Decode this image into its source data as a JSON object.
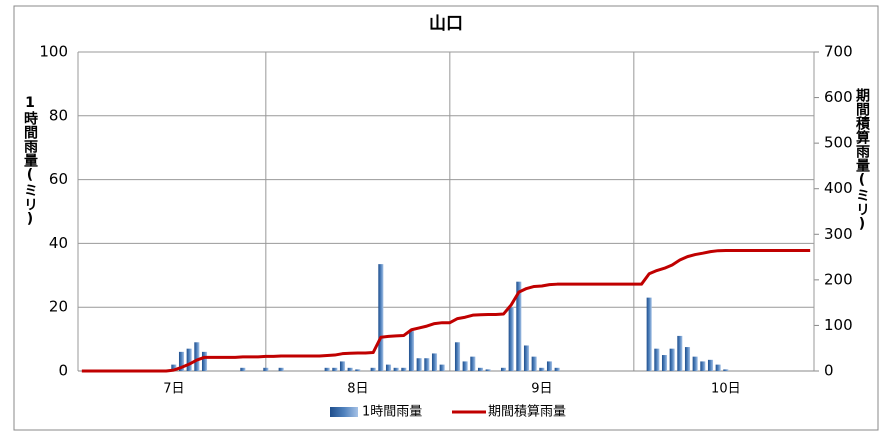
{
  "chart_data": {
    "type": "bar-line",
    "title": "山口",
    "y_label": "1時間雨量(ミリ)",
    "y2_label": "期間積算雨量(ミリ)",
    "categories": [
      null,
      null,
      null,
      null,
      null,
      null,
      null,
      null,
      null,
      null,
      null,
      null,
      "7日",
      null,
      null,
      null,
      null,
      null,
      null,
      null,
      null,
      null,
      null,
      null,
      null,
      null,
      null,
      null,
      null,
      null,
      null,
      null,
      null,
      null,
      null,
      null,
      "8日",
      null,
      null,
      null,
      null,
      null,
      null,
      null,
      null,
      null,
      null,
      null,
      null,
      null,
      null,
      null,
      null,
      null,
      null,
      null,
      null,
      null,
      null,
      null,
      "9日",
      null,
      null,
      null,
      null,
      null,
      null,
      null,
      null,
      null,
      null,
      null,
      null,
      null,
      null,
      null,
      null,
      null,
      null,
      null,
      null,
      null,
      null,
      null,
      "10日",
      null,
      null,
      null,
      null,
      null,
      null,
      null,
      null,
      null,
      null,
      null
    ],
    "series": [
      {
        "name": "1時間雨量",
        "color": "#4f81bd",
        "type": "bar",
        "values": [
          0,
          0,
          0,
          0,
          0,
          0,
          0,
          0,
          0,
          0,
          0,
          0,
          2,
          6,
          7,
          9,
          6,
          0,
          0,
          0,
          0,
          1,
          0,
          0,
          1,
          0,
          1,
          0,
          0,
          0,
          0,
          0,
          1,
          1,
          3,
          1,
          0.5,
          0,
          1,
          33.5,
          2,
          1,
          1,
          12.5,
          4,
          4,
          5.5,
          2,
          0,
          9,
          3,
          4.5,
          1,
          0.5,
          0,
          1,
          20,
          28,
          8,
          4.5,
          1,
          3,
          1,
          0,
          0,
          0,
          0,
          0,
          0,
          0,
          0,
          0,
          0,
          0,
          23,
          7,
          5,
          7,
          11,
          7.5,
          4.5,
          3,
          3.5,
          2,
          0.5,
          0,
          0,
          0,
          0,
          0,
          0,
          0,
          0,
          0,
          0,
          0
        ]
      },
      {
        "name": "期間積算雨量",
        "color": "#c00000",
        "type": "line",
        "axis": "y2",
        "values": [
          0,
          0,
          0,
          0,
          0,
          0,
          0,
          0,
          0,
          0,
          0,
          0,
          2,
          8,
          15,
          24,
          30,
          30,
          30,
          30,
          30,
          31,
          31,
          31,
          32,
          32,
          33,
          33,
          33,
          33,
          33,
          33,
          34,
          35,
          38,
          39,
          39.5,
          39.5,
          40.5,
          74,
          76,
          77,
          78,
          90.5,
          94.5,
          98.5,
          104,
          106,
          106,
          115,
          118,
          122.5,
          123.5,
          124,
          124,
          125,
          145,
          173,
          181,
          185.5,
          186.5,
          189.5,
          190.5,
          190.5,
          190.5,
          190.5,
          190.5,
          190.5,
          190.5,
          190.5,
          190.5,
          190.5,
          190.5,
          190.5,
          213.5,
          220.5,
          225.5,
          232.5,
          243.5,
          251,
          255.5,
          258.5,
          262,
          264,
          264.5,
          264.5,
          264.5,
          264.5,
          264.5,
          264.5,
          264.5,
          264.5,
          264.5,
          264.5,
          264.5,
          264.5
        ]
      }
    ],
    "ylim": [
      0,
      100
    ],
    "yticks": [
      0,
      20,
      40,
      60,
      80,
      100
    ],
    "y2lim": [
      0,
      700
    ],
    "y2ticks": [
      0,
      100,
      200,
      300,
      400,
      500,
      600,
      700
    ],
    "grid": true,
    "legend": "bottom"
  }
}
